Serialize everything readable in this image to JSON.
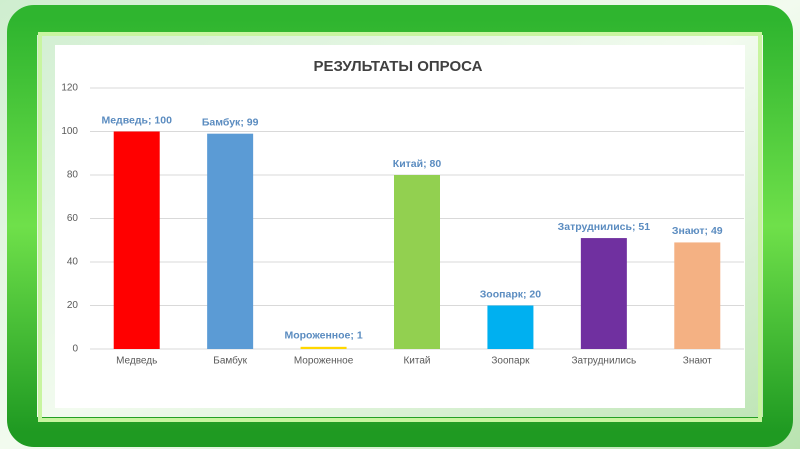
{
  "chart_data": {
    "type": "bar",
    "title": "РЕЗУЛЬТАТЫ ОПРОСА",
    "categories": [
      "Медведь",
      "Бамбук",
      "Мороженное",
      "Китай",
      "Зоопарк",
      "Затруднились",
      "Знают"
    ],
    "values": [
      100,
      99,
      1,
      80,
      20,
      51,
      49
    ],
    "value_labels": [
      "Медведь; 100",
      "Бамбук; 99",
      "Мороженное; 1",
      "Китай; 80",
      "Зоопарк; 20",
      "Затруднились; 51",
      "Знают; 49"
    ],
    "colors": [
      "#ff0000",
      "#5b9bd5",
      "#ffd700",
      "#92d050",
      "#00b0f0",
      "#7030a0",
      "#f4b183"
    ],
    "ylim": [
      0,
      120
    ],
    "yticks": [
      0,
      20,
      40,
      60,
      80,
      100,
      120
    ],
    "grid": true
  }
}
